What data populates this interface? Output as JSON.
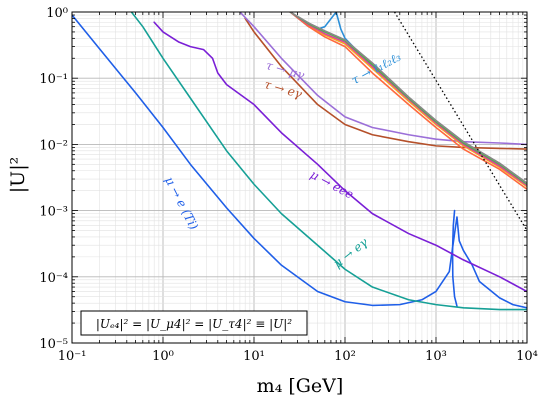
{
  "chart_data": {
    "type": "line",
    "xlabel": "m₄ [GeV]",
    "ylabel": "|U|²",
    "xscale": "log",
    "yscale": "log",
    "xlim": [
      0.1,
      10000
    ],
    "ylim": [
      1e-05,
      1
    ],
    "grid": true,
    "x_ticks": [
      {
        "value": 0.1,
        "label": "10⁻¹"
      },
      {
        "value": 1,
        "label": "10⁰"
      },
      {
        "value": 10,
        "label": "10¹"
      },
      {
        "value": 100,
        "label": "10²"
      },
      {
        "value": 1000,
        "label": "10³"
      },
      {
        "value": 10000,
        "label": "10⁴"
      }
    ],
    "y_ticks": [
      {
        "value": 1e-05,
        "label": "10⁻⁵"
      },
      {
        "value": 0.0001,
        "label": "10⁻⁴"
      },
      {
        "value": 0.001,
        "label": "10⁻³"
      },
      {
        "value": 0.01,
        "label": "10⁻²"
      },
      {
        "value": 0.1,
        "label": "10⁻¹"
      },
      {
        "value": 1,
        "label": "10⁰"
      }
    ],
    "legend_box": "|Uₑ₄|² = |U_μ4|² = |U_τ4|² ≡ |U|²",
    "series": [
      {
        "color": "#1f5fe8",
        "label": "μ → e (Ti)",
        "x": [
          0.1,
          0.2,
          0.5,
          1,
          2,
          5,
          10,
          20,
          50,
          100,
          200,
          400,
          700,
          1000,
          1400,
          1600,
          1700,
          1800,
          2000,
          2500,
          3000,
          5000,
          7000,
          10000
        ],
        "y": [
          0.9,
          0.28,
          0.06,
          0.018,
          0.005,
          0.0011,
          0.00038,
          0.00015,
          6e-05,
          4.2e-05,
          3.7e-05,
          3.8e-05,
          4.5e-05,
          6e-05,
          0.00012,
          0.00045,
          0.0008,
          0.00035,
          0.00025,
          0.00015,
          8.5e-05,
          4.8e-05,
          3.8e-05,
          3.4e-05
        ]
      },
      {
        "color": "#1f5fe8",
        "label": "",
        "x": [
          1600,
          1550,
          1520,
          1530,
          1600,
          1700
        ],
        "y": [
          0.001,
          0.0006,
          0.00025,
          0.0001,
          5e-05,
          3.6e-05
        ]
      },
      {
        "color": "#16a096",
        "label": "μ → eγ",
        "x": [
          0.45,
          0.6,
          1,
          2,
          5,
          10,
          20,
          50,
          100,
          200,
          500,
          1000,
          2000,
          5000,
          10000
        ],
        "y": [
          1,
          0.6,
          0.2,
          0.05,
          0.008,
          0.0025,
          0.0009,
          0.0003,
          0.00013,
          7e-05,
          4.5e-05,
          3.8e-05,
          3.4e-05,
          3.2e-05,
          3.2e-05
        ]
      },
      {
        "color": "#7a1fd6",
        "label": "μ → eee",
        "x": [
          0.8,
          1,
          1.5,
          2,
          2.8,
          3.5,
          4,
          5,
          10,
          20,
          50,
          100,
          200,
          500,
          1000,
          2000,
          5000,
          10000
        ],
        "y": [
          0.7,
          0.5,
          0.35,
          0.3,
          0.27,
          0.2,
          0.12,
          0.08,
          0.04,
          0.015,
          0.005,
          0.002,
          0.0009,
          0.00045,
          0.0003,
          0.00018,
          0.0001,
          6e-05
        ]
      },
      {
        "color": "#b5502a",
        "label": "τ → eγ",
        "x": [
          8,
          10,
          20,
          50,
          100,
          200,
          500,
          1000,
          2000,
          5000,
          10000
        ],
        "y": [
          0.8,
          0.5,
          0.15,
          0.04,
          0.02,
          0.014,
          0.011,
          0.0095,
          0.009,
          0.0087,
          0.0085
        ]
      },
      {
        "color": "#9b6fd8",
        "label": "τ → μγ",
        "x": [
          7,
          10,
          20,
          50,
          100,
          200,
          500,
          1000,
          2000,
          5000,
          10000
        ],
        "y": [
          1,
          0.6,
          0.2,
          0.055,
          0.026,
          0.018,
          0.014,
          0.012,
          0.011,
          0.0105,
          0.01
        ]
      },
      {
        "color": "#2b8fd8",
        "label": "τ → ℓ₁ℓ₂ℓ₃",
        "x": [
          25,
          40,
          50,
          60,
          80,
          90,
          100,
          200,
          500,
          1000,
          2000,
          5000,
          10000
        ],
        "y": [
          1,
          0.6,
          0.55,
          0.6,
          1,
          0.55,
          0.4,
          0.15,
          0.05,
          0.022,
          0.01,
          0.0048,
          0.0025
        ]
      },
      {
        "color": "#f5a623",
        "label": "",
        "x": [
          25,
          40,
          60,
          100,
          200,
          500,
          1000,
          2000,
          5000,
          10000
        ],
        "y": [
          1,
          0.62,
          0.45,
          0.33,
          0.14,
          0.045,
          0.02,
          0.0095,
          0.0045,
          0.0023
        ]
      },
      {
        "color": "#ff6a3d",
        "label": "",
        "x": [
          25,
          40,
          60,
          100,
          200,
          500,
          1000,
          2000,
          5000,
          10000
        ],
        "y": [
          1,
          0.6,
          0.42,
          0.3,
          0.12,
          0.04,
          0.018,
          0.0085,
          0.0042,
          0.0021
        ]
      },
      {
        "color": "#d93fa0",
        "label": "",
        "x": [
          25,
          40,
          60,
          100,
          200,
          500,
          1000,
          2000,
          5000,
          10000
        ],
        "y": [
          1,
          0.64,
          0.47,
          0.35,
          0.15,
          0.048,
          0.021,
          0.01,
          0.0047,
          0.0024
        ]
      },
      {
        "color": "#4fb04a",
        "label": "",
        "x": [
          25,
          40,
          60,
          100,
          200,
          500,
          1000,
          2000,
          5000,
          10000
        ],
        "y": [
          1,
          0.66,
          0.5,
          0.37,
          0.16,
          0.05,
          0.022,
          0.0105,
          0.005,
          0.0025
        ]
      },
      {
        "color": "#888888",
        "label": "",
        "x": [
          25,
          40,
          60,
          100,
          200,
          500,
          1000,
          2000,
          5000,
          10000
        ],
        "y": [
          1,
          0.68,
          0.52,
          0.38,
          0.17,
          0.052,
          0.023,
          0.011,
          0.0052,
          0.0026
        ]
      }
    ],
    "dotted_line": {
      "color": "#000000",
      "x": [
        350,
        10000
      ],
      "y": [
        1,
        0.0005
      ]
    }
  }
}
